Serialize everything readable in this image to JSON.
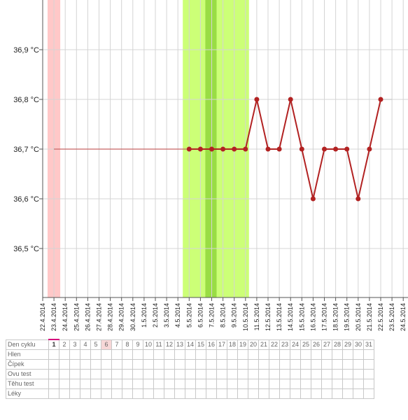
{
  "chart_data": {
    "type": "line",
    "title": "",
    "xlabel": "",
    "ylabel": "",
    "unit": "°C",
    "y_ticks": [
      "36,5 °C",
      "36,6 °C",
      "36,7 °C",
      "36,8 °C",
      "36,9 °C"
    ],
    "ylim": [
      36.4,
      37.0
    ],
    "x_ticks": [
      "22.4.2014",
      "23.4.2014",
      "24.4.2014",
      "25.4.2014",
      "26.4.2014",
      "27.4.2014",
      "28.4.2014",
      "29.4.2014",
      "30.4.2014",
      "1.5.2014",
      "2.5.2014",
      "3.5.2014",
      "4.5.2014",
      "5.5.2014",
      "6.5.2014",
      "7.5.2014",
      "8.5.2014",
      "9.5.2014",
      "10.5.2014",
      "11.5.2014",
      "12.5.2014",
      "13.5.2014",
      "14.5.2014",
      "15.5.2014",
      "16.5.2014",
      "17.5.2014",
      "18.5.2014",
      "19.5.2014",
      "20.5.2014",
      "21.5.2014",
      "22.5.2014",
      "23.5.2014",
      "24.5.2014"
    ],
    "series": [
      {
        "color": "#b22222",
        "points": [
          {
            "x": "5.5.2014",
            "y": 36.7
          },
          {
            "x": "6.5.2014",
            "y": 36.7
          },
          {
            "x": "7.5.2014",
            "y": 36.7
          },
          {
            "x": "8.5.2014",
            "y": 36.7
          },
          {
            "x": "9.5.2014",
            "y": 36.7
          },
          {
            "x": "10.5.2014",
            "y": 36.7
          },
          {
            "x": "11.5.2014",
            "y": 36.8
          },
          {
            "x": "12.5.2014",
            "y": 36.7
          },
          {
            "x": "13.5.2014",
            "y": 36.7
          },
          {
            "x": "14.5.2014",
            "y": 36.8
          },
          {
            "x": "15.5.2014",
            "y": 36.7
          },
          {
            "x": "16.5.2014",
            "y": 36.6
          },
          {
            "x": "17.5.2014",
            "y": 36.7
          },
          {
            "x": "18.5.2014",
            "y": 36.7
          },
          {
            "x": "19.5.2014",
            "y": 36.7
          },
          {
            "x": "20.5.2014",
            "y": 36.6
          },
          {
            "x": "21.5.2014",
            "y": 36.7
          },
          {
            "x": "22.5.2014",
            "y": 36.8
          }
        ]
      }
    ],
    "baseline_lines": [
      {
        "color": "#c86464",
        "from": "23.4.2014",
        "to": "5.5.2014",
        "y": 36.7
      },
      {
        "color": "#c8c8c8",
        "from": "22.5.2014",
        "to": "23.5.2014",
        "y": 36.8
      }
    ],
    "bands": [
      {
        "from": "22.4.2014",
        "to": "23.4.2014",
        "color": "#ffc8c8"
      },
      {
        "from": "4.5.2014",
        "to": "9.5.2014",
        "color": "#ccff77"
      },
      {
        "from": "6.5.2014",
        "to": "7.5.2014",
        "color": "#99dd44"
      }
    ],
    "grid": true
  },
  "table": {
    "rows": [
      "Den cyklu",
      "Hlen",
      "Čípek",
      "Ovu test",
      "Těhu test",
      "Léky"
    ],
    "days": [
      "1",
      "2",
      "3",
      "4",
      "5",
      "6",
      "7",
      "8",
      "9",
      "10",
      "11",
      "12",
      "13",
      "14",
      "15",
      "16",
      "17",
      "18",
      "19",
      "20",
      "21",
      "22",
      "23",
      "24",
      "25",
      "26",
      "27",
      "28",
      "29",
      "30",
      "31"
    ],
    "today_index": 0,
    "marked_index": 5
  }
}
